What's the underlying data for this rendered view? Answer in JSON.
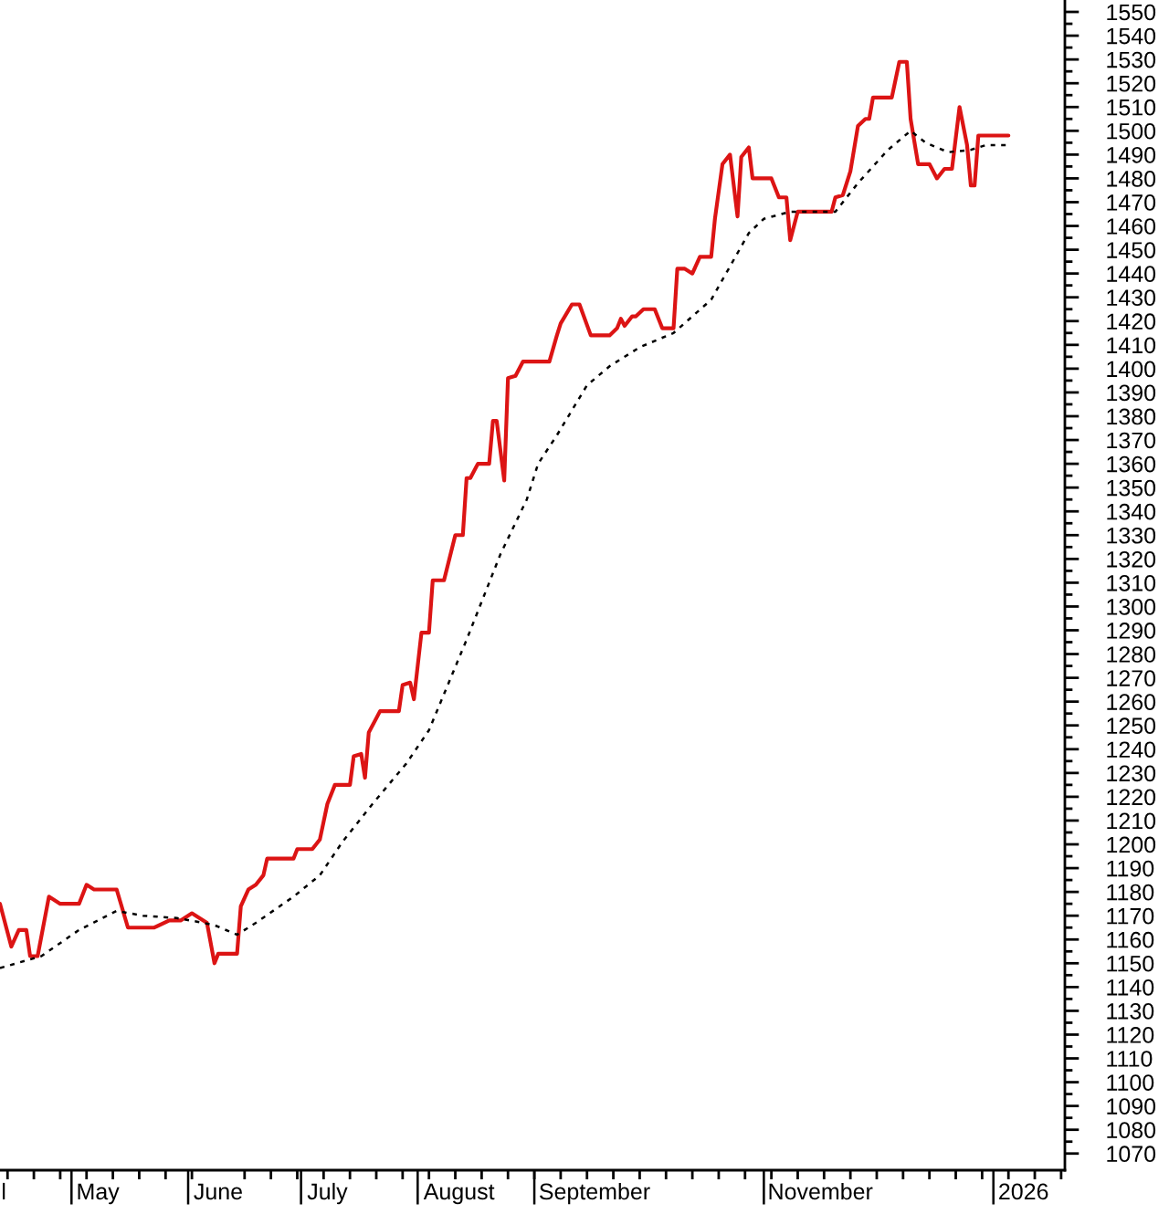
{
  "chart_data": {
    "type": "line",
    "series": [
      {
        "color": "#dc1414",
        "line_style": "solid",
        "x": [
          "2025-04-12",
          "2025-04-15",
          "2025-04-17",
          "2025-04-19",
          "2025-04-20",
          "2025-04-22",
          "2025-04-25",
          "2025-04-28",
          "2025-05-03",
          "2025-05-05",
          "2025-05-07",
          "2025-05-13",
          "2025-05-16",
          "2025-05-23",
          "2025-05-27",
          "2025-05-30",
          "2025-06-02",
          "2025-06-04",
          "2025-06-06",
          "2025-06-08",
          "2025-06-09",
          "2025-06-14",
          "2025-06-15",
          "2025-06-17",
          "2025-06-19",
          "2025-06-21",
          "2025-06-22",
          "2025-06-25",
          "2025-06-29",
          "2025-06-30",
          "2025-07-04",
          "2025-07-06",
          "2025-07-08",
          "2025-07-10",
          "2025-07-14",
          "2025-07-15",
          "2025-07-17",
          "2025-07-18",
          "2025-07-19",
          "2025-07-22",
          "2025-07-27",
          "2025-07-28",
          "2025-07-30",
          "2025-07-31",
          "2025-08-02",
          "2025-08-04",
          "2025-08-05",
          "2025-08-08",
          "2025-08-11",
          "2025-08-13",
          "2025-08-14",
          "2025-08-15",
          "2025-08-17",
          "2025-08-20",
          "2025-08-21",
          "2025-08-22",
          "2025-08-24",
          "2025-08-25",
          "2025-08-27",
          "2025-08-29",
          "2025-09-05",
          "2025-09-07",
          "2025-09-08",
          "2025-09-11",
          "2025-09-13",
          "2025-09-16",
          "2025-09-21",
          "2025-09-23",
          "2025-09-24",
          "2025-09-25",
          "2025-09-27",
          "2025-09-28",
          "2025-09-30",
          "2025-10-03",
          "2025-10-05",
          "2025-10-08",
          "2025-10-09",
          "2025-10-11",
          "2025-10-13",
          "2025-10-15",
          "2025-10-18",
          "2025-10-19",
          "2025-10-21",
          "2025-10-23",
          "2025-10-25",
          "2025-10-26",
          "2025-10-28",
          "2025-10-29",
          "2025-11-03",
          "2025-11-05",
          "2025-11-07",
          "2025-11-08",
          "2025-11-10",
          "2025-11-19",
          "2025-11-20",
          "2025-11-22",
          "2025-11-24",
          "2025-11-26",
          "2025-11-28",
          "2025-11-29",
          "2025-11-30",
          "2025-12-05",
          "2025-12-07",
          "2025-12-09",
          "2025-12-10",
          "2025-12-12",
          "2025-12-15",
          "2025-12-17",
          "2025-12-19",
          "2025-12-21",
          "2025-12-23",
          "2025-12-25",
          "2025-12-26",
          "2025-12-27",
          "2025-12-28",
          "2026-01-05"
        ],
        "values": [
          1175,
          1157,
          1164,
          1164,
          1153,
          1153,
          1178,
          1175,
          1175,
          1183,
          1181,
          1181,
          1165,
          1165,
          1168,
          1168,
          1171,
          1169,
          1167,
          1150,
          1154,
          1154,
          1174,
          1181,
          1183,
          1187,
          1194,
          1194,
          1194,
          1198,
          1198,
          1202,
          1217,
          1225,
          1225,
          1237,
          1238,
          1228,
          1247,
          1256,
          1256,
          1267,
          1268,
          1261,
          1289,
          1289,
          1311,
          1311,
          1330,
          1330,
          1354,
          1354,
          1360,
          1360,
          1378,
          1378,
          1353,
          1396,
          1397,
          1403,
          1403,
          1414,
          1419,
          1427,
          1427,
          1414,
          1414,
          1417,
          1421,
          1418,
          1422,
          1422,
          1425,
          1425,
          1417,
          1417,
          1442,
          1442,
          1440,
          1447,
          1447,
          1463,
          1486,
          1490,
          1464,
          1489,
          1493,
          1480,
          1480,
          1472,
          1472,
          1454,
          1466,
          1466,
          1472,
          1473,
          1483,
          1502,
          1505,
          1505,
          1514,
          1514,
          1529,
          1529,
          1505,
          1486,
          1486,
          1480,
          1484,
          1484,
          1510,
          1494,
          1477,
          1477,
          1498,
          1498
        ]
      },
      {
        "color": "#000000",
        "line_style": "dotted",
        "x": [
          "2025-04-12",
          "2025-04-23",
          "2025-05-03",
          "2025-05-13",
          "2025-05-20",
          "2025-05-29",
          "2025-06-05",
          "2025-06-08",
          "2025-06-14",
          "2025-06-19",
          "2025-06-29",
          "2025-07-06",
          "2025-07-12",
          "2025-07-20",
          "2025-07-29",
          "2025-08-04",
          "2025-08-14",
          "2025-08-23",
          "2025-08-30",
          "2025-09-02",
          "2025-09-07",
          "2025-09-15",
          "2025-09-21",
          "2025-09-29",
          "2025-10-08",
          "2025-10-18",
          "2025-10-28",
          "2025-11-01",
          "2025-11-08",
          "2025-11-20",
          "2025-11-26",
          "2025-12-04",
          "2025-12-10",
          "2025-12-14",
          "2025-12-20",
          "2025-12-26",
          "2025-12-30",
          "2026-01-05"
        ],
        "values": [
          1148,
          1153,
          1164,
          1172,
          1170,
          1169,
          1167,
          1166,
          1162,
          1167,
          1178,
          1187,
          1201,
          1217,
          1234,
          1248,
          1286,
          1322,
          1345,
          1360,
          1372,
          1393,
          1401,
          1409,
          1415,
          1429,
          1457,
          1463,
          1466,
          1466,
          1478,
          1492,
          1500,
          1495,
          1491,
          1492,
          1494,
          1494
        ]
      }
    ],
    "xlim": [
      "2025-04-12",
      "2026-01-20"
    ],
    "xticks": [
      {
        "value": "2025-04-13",
        "label": "l"
      },
      {
        "value": "2025-05-08",
        "label": "May"
      },
      {
        "value": "2025-06-09",
        "label": "June"
      },
      {
        "value": "2025-07-08",
        "label": "July"
      },
      {
        "value": "2025-08-12",
        "label": "August"
      },
      {
        "value": "2025-09-17",
        "label": "September"
      },
      {
        "value": "2025-11-16",
        "label": "November"
      },
      {
        "value": "2026-01-09",
        "label": "2026"
      }
    ],
    "ylim": [
      1063,
      1555
    ],
    "yticks": [
      1070,
      1080,
      1090,
      1100,
      1110,
      1120,
      1130,
      1140,
      1150,
      1160,
      1170,
      1180,
      1190,
      1200,
      1210,
      1220,
      1230,
      1240,
      1250,
      1260,
      1270,
      1280,
      1290,
      1300,
      1310,
      1320,
      1330,
      1340,
      1350,
      1360,
      1370,
      1380,
      1390,
      1400,
      1410,
      1420,
      1430,
      1440,
      1450,
      1460,
      1470,
      1480,
      1490,
      1500,
      1510,
      1520,
      1530,
      1540,
      1550
    ],
    "grid": false,
    "marker": "none"
  }
}
